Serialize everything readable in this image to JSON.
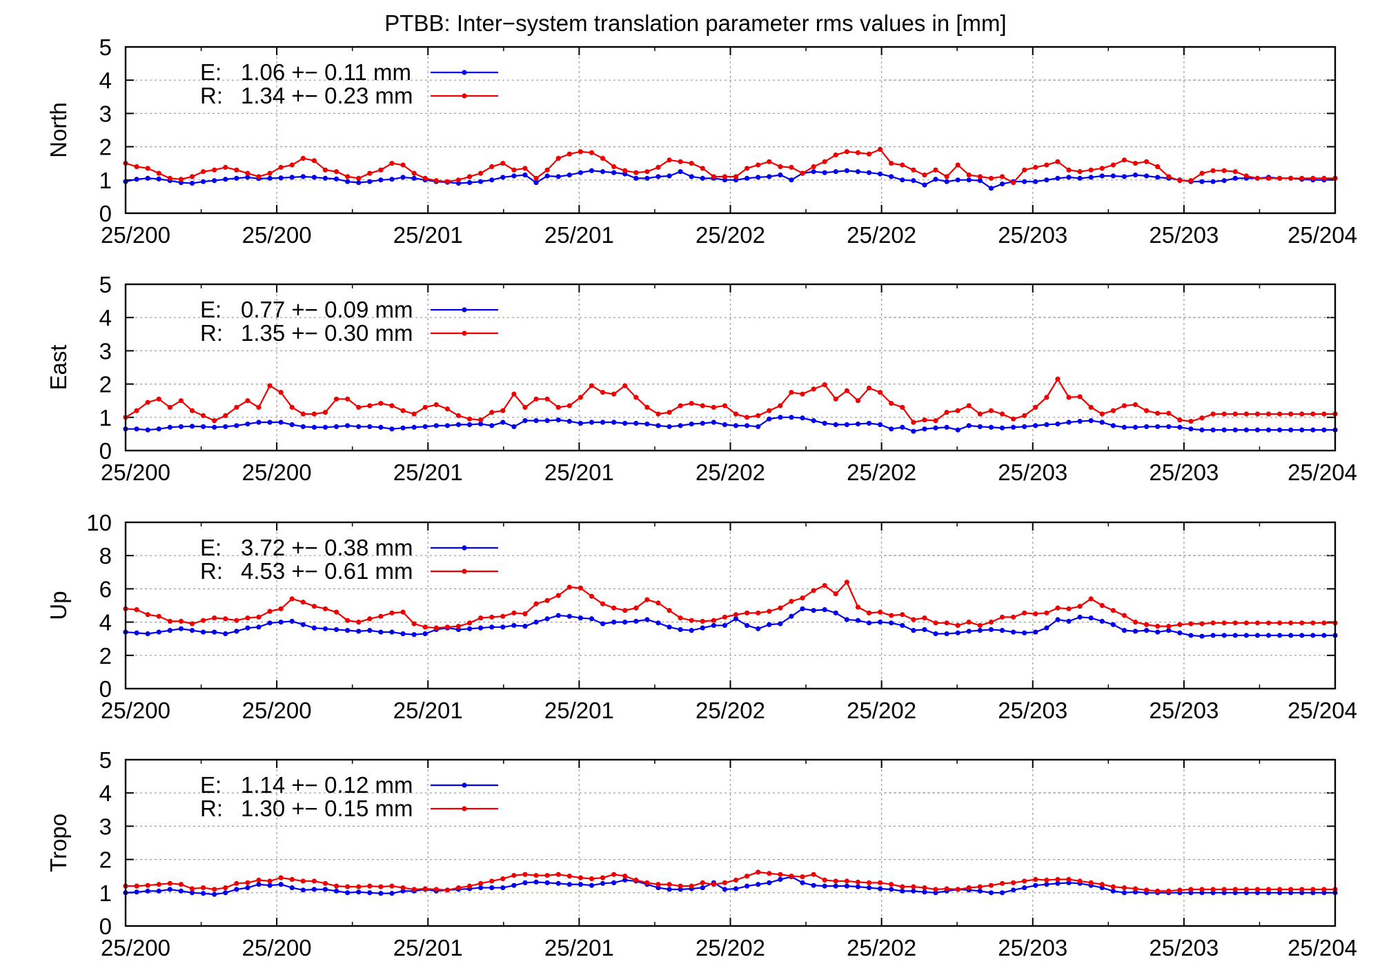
{
  "figure": {
    "title": "PTBB: Inter−system translation parameter rms values in [mm]"
  },
  "colors": {
    "E": "#0000ee",
    "R": "#ee0000",
    "grid": "#9a9a9a",
    "axis": "#000000"
  },
  "chart_data": [
    {
      "type": "line",
      "ylabel": "North",
      "ylim": [
        0,
        5
      ],
      "yticks": [
        0,
        1,
        2,
        3,
        4,
        5
      ],
      "xlim": [
        0,
        109
      ],
      "xtick_labels": [
        "25/200",
        "25/200",
        "25/201",
        "25/201",
        "25/202",
        "25/202",
        "25/203",
        "25/203",
        "25/204"
      ],
      "grid": true,
      "legend_position": "top-left",
      "legend": [
        {
          "name": "E:",
          "stat": "1.06 +− 0.11 mm"
        },
        {
          "name": "R:",
          "stat": "1.34 +− 0.23 mm"
        }
      ],
      "series": [
        {
          "name": "E",
          "color": "#0000ee",
          "values": [
            0.95,
            1.02,
            1.05,
            1.03,
            0.98,
            0.92,
            0.9,
            0.95,
            0.98,
            1.02,
            1.05,
            1.08,
            1.04,
            1.05,
            1.06,
            1.08,
            1.1,
            1.08,
            1.05,
            1.03,
            0.95,
            0.92,
            0.95,
            1.0,
            1.02,
            1.08,
            1.05,
            1.0,
            0.95,
            0.93,
            0.9,
            0.92,
            0.95,
            1.0,
            1.08,
            1.12,
            1.15,
            0.92,
            1.12,
            1.1,
            1.15,
            1.22,
            1.28,
            1.25,
            1.22,
            1.18,
            1.05,
            1.05,
            1.1,
            1.12,
            1.25,
            1.1,
            1.05,
            1.05,
            1.0,
            1.0,
            1.05,
            1.08,
            1.1,
            1.15,
            1.0,
            1.2,
            1.25,
            1.22,
            1.25,
            1.28,
            1.25,
            1.22,
            1.18,
            1.1,
            1.0,
            0.98,
            0.85,
            1.02,
            0.95,
            1.0,
            1.0,
            0.98,
            0.75,
            0.88,
            0.95,
            0.95,
            0.95,
            1.0,
            1.05,
            1.08,
            1.05,
            1.08,
            1.12,
            1.12,
            1.1,
            1.15,
            1.12,
            1.08,
            1.05,
            1.0,
            0.95,
            0.95,
            0.95,
            0.98,
            1.05,
            1.05,
            1.05,
            1.08,
            1.05,
            1.05,
            1.02,
            1.0,
            1.0,
            1.05
          ]
        },
        {
          "name": "R",
          "color": "#ee0000",
          "values": [
            1.5,
            1.4,
            1.35,
            1.2,
            1.05,
            1.02,
            1.1,
            1.25,
            1.3,
            1.38,
            1.3,
            1.2,
            1.1,
            1.2,
            1.38,
            1.45,
            1.65,
            1.58,
            1.3,
            1.25,
            1.1,
            1.05,
            1.2,
            1.3,
            1.5,
            1.45,
            1.2,
            1.05,
            0.98,
            0.95,
            1.0,
            1.1,
            1.2,
            1.4,
            1.5,
            1.3,
            1.35,
            1.05,
            1.3,
            1.65,
            1.78,
            1.85,
            1.82,
            1.65,
            1.4,
            1.28,
            1.22,
            1.25,
            1.38,
            1.6,
            1.55,
            1.5,
            1.35,
            1.1,
            1.1,
            1.1,
            1.35,
            1.45,
            1.55,
            1.4,
            1.38,
            1.2,
            1.4,
            1.55,
            1.75,
            1.85,
            1.82,
            1.78,
            1.92,
            1.5,
            1.45,
            1.3,
            1.15,
            1.3,
            1.1,
            1.45,
            1.15,
            1.1,
            1.05,
            1.1,
            0.92,
            1.3,
            1.38,
            1.45,
            1.55,
            1.3,
            1.25,
            1.3,
            1.35,
            1.45,
            1.6,
            1.5,
            1.55,
            1.4,
            1.1,
            0.98,
            0.98,
            1.2,
            1.28,
            1.28,
            1.25,
            1.12,
            1.05,
            1.05,
            1.05,
            1.05,
            1.05,
            1.05,
            1.05,
            1.05
          ]
        }
      ]
    },
    {
      "type": "line",
      "ylabel": "East",
      "ylim": [
        0,
        5
      ],
      "yticks": [
        0,
        1,
        2,
        3,
        4,
        5
      ],
      "xlim": [
        0,
        109
      ],
      "xtick_labels": [
        "25/200",
        "25/200",
        "25/201",
        "25/201",
        "25/202",
        "25/202",
        "25/203",
        "25/203",
        "25/204"
      ],
      "grid": true,
      "legend_position": "top-left",
      "legend": [
        {
          "name": "E:",
          "stat": "0.77 +− 0.09 mm"
        },
        {
          "name": "R:",
          "stat": "1.35 +− 0.30 mm"
        }
      ],
      "series": [
        {
          "name": "E",
          "color": "#0000ee",
          "values": [
            0.65,
            0.65,
            0.62,
            0.65,
            0.7,
            0.72,
            0.73,
            0.72,
            0.7,
            0.72,
            0.75,
            0.8,
            0.85,
            0.85,
            0.85,
            0.78,
            0.72,
            0.7,
            0.7,
            0.72,
            0.75,
            0.72,
            0.72,
            0.7,
            0.65,
            0.68,
            0.7,
            0.72,
            0.75,
            0.75,
            0.78,
            0.78,
            0.8,
            0.75,
            0.85,
            0.72,
            0.9,
            0.9,
            0.9,
            0.92,
            0.88,
            0.82,
            0.85,
            0.85,
            0.85,
            0.82,
            0.82,
            0.8,
            0.75,
            0.72,
            0.75,
            0.8,
            0.82,
            0.85,
            0.78,
            0.75,
            0.75,
            0.72,
            0.95,
            1.0,
            1.0,
            0.98,
            0.9,
            0.82,
            0.78,
            0.78,
            0.8,
            0.82,
            0.78,
            0.65,
            0.7,
            0.58,
            0.65,
            0.68,
            0.7,
            0.62,
            0.75,
            0.72,
            0.7,
            0.68,
            0.7,
            0.72,
            0.75,
            0.78,
            0.8,
            0.85,
            0.88,
            0.9,
            0.85,
            0.75,
            0.7,
            0.7,
            0.72,
            0.72,
            0.72,
            0.7,
            0.65,
            0.62,
            0.62,
            0.62,
            0.62,
            0.62,
            0.62,
            0.62,
            0.62,
            0.62,
            0.62,
            0.62,
            0.62,
            0.62
          ]
        },
        {
          "name": "R",
          "color": "#ee0000",
          "values": [
            1.0,
            1.2,
            1.45,
            1.55,
            1.3,
            1.5,
            1.2,
            1.05,
            0.9,
            1.05,
            1.3,
            1.5,
            1.3,
            1.95,
            1.75,
            1.3,
            1.1,
            1.1,
            1.15,
            1.55,
            1.55,
            1.3,
            1.35,
            1.42,
            1.35,
            1.2,
            1.1,
            1.3,
            1.38,
            1.25,
            1.05,
            0.95,
            0.92,
            1.15,
            1.2,
            1.7,
            1.3,
            1.55,
            1.55,
            1.3,
            1.35,
            1.6,
            1.95,
            1.75,
            1.7,
            1.95,
            1.6,
            1.3,
            1.1,
            1.15,
            1.35,
            1.42,
            1.35,
            1.3,
            1.35,
            1.1,
            1.0,
            1.05,
            1.2,
            1.35,
            1.75,
            1.7,
            1.85,
            1.98,
            1.55,
            1.8,
            1.5,
            1.88,
            1.75,
            1.42,
            1.3,
            0.85,
            0.92,
            0.9,
            1.15,
            1.2,
            1.35,
            1.1,
            1.2,
            1.1,
            0.95,
            1.05,
            1.3,
            1.6,
            2.15,
            1.6,
            1.62,
            1.3,
            1.1,
            1.2,
            1.35,
            1.38,
            1.2,
            1.12,
            1.12,
            0.92,
            0.88,
            0.98,
            1.1,
            1.1,
            1.1,
            1.1,
            1.1,
            1.1,
            1.1,
            1.1,
            1.1,
            1.1,
            1.1,
            1.1
          ]
        }
      ]
    },
    {
      "type": "line",
      "ylabel": "Up",
      "ylim": [
        0,
        10
      ],
      "yticks": [
        0,
        2,
        4,
        6,
        8,
        10
      ],
      "xlim": [
        0,
        109
      ],
      "xtick_labels": [
        "25/200",
        "25/200",
        "25/201",
        "25/201",
        "25/202",
        "25/202",
        "25/203",
        "25/203",
        "25/204"
      ],
      "grid": true,
      "legend_position": "top-left",
      "legend": [
        {
          "name": "E:",
          "stat": "3.72 +− 0.38 mm"
        },
        {
          "name": "R:",
          "stat": "4.53 +− 0.61 mm"
        }
      ],
      "series": [
        {
          "name": "E",
          "color": "#0000ee",
          "values": [
            3.4,
            3.35,
            3.3,
            3.4,
            3.5,
            3.6,
            3.5,
            3.4,
            3.4,
            3.3,
            3.45,
            3.65,
            3.7,
            3.95,
            4.0,
            4.05,
            3.85,
            3.65,
            3.6,
            3.55,
            3.5,
            3.45,
            3.5,
            3.4,
            3.4,
            3.3,
            3.25,
            3.3,
            3.55,
            3.65,
            3.55,
            3.6,
            3.65,
            3.7,
            3.7,
            3.8,
            3.75,
            4.0,
            4.2,
            4.4,
            4.35,
            4.25,
            4.2,
            3.9,
            4.0,
            4.0,
            4.05,
            4.15,
            3.95,
            3.7,
            3.55,
            3.5,
            3.65,
            3.8,
            3.8,
            4.2,
            3.8,
            3.6,
            3.85,
            3.9,
            4.35,
            4.8,
            4.7,
            4.75,
            4.55,
            4.15,
            4.1,
            3.95,
            4.0,
            3.95,
            3.8,
            3.5,
            3.55,
            3.3,
            3.3,
            3.35,
            3.45,
            3.5,
            3.55,
            3.5,
            3.4,
            3.35,
            3.4,
            3.65,
            4.15,
            4.05,
            4.3,
            4.25,
            4.05,
            3.85,
            3.5,
            3.45,
            3.5,
            3.4,
            3.5,
            3.35,
            3.2,
            3.15,
            3.2,
            3.2,
            3.2,
            3.2,
            3.2,
            3.2,
            3.2,
            3.2,
            3.2,
            3.2,
            3.2,
            3.2
          ]
        },
        {
          "name": "R",
          "color": "#ee0000",
          "values": [
            4.8,
            4.75,
            4.45,
            4.35,
            4.05,
            4.05,
            3.9,
            4.1,
            4.25,
            4.2,
            4.1,
            4.25,
            4.3,
            4.65,
            4.8,
            5.4,
            5.2,
            4.95,
            4.8,
            4.6,
            4.1,
            4.0,
            4.2,
            4.35,
            4.55,
            4.6,
            3.9,
            3.7,
            3.65,
            3.7,
            3.75,
            3.95,
            4.25,
            4.3,
            4.35,
            4.55,
            4.5,
            5.1,
            5.3,
            5.6,
            6.1,
            6.05,
            5.55,
            5.1,
            4.85,
            4.7,
            4.85,
            5.35,
            5.15,
            4.7,
            4.25,
            4.1,
            4.05,
            4.1,
            4.3,
            4.45,
            4.55,
            4.55,
            4.65,
            4.85,
            5.25,
            5.45,
            5.9,
            6.2,
            5.7,
            6.4,
            4.9,
            4.55,
            4.6,
            4.4,
            4.45,
            4.15,
            4.25,
            3.95,
            3.95,
            3.8,
            4.0,
            3.8,
            4.0,
            4.3,
            4.3,
            4.55,
            4.5,
            4.55,
            4.85,
            4.8,
            4.95,
            5.4,
            5.0,
            4.7,
            4.4,
            4.0,
            3.85,
            3.75,
            3.75,
            3.85,
            3.9,
            3.9,
            3.95,
            3.95,
            3.95,
            3.95,
            3.95,
            3.95,
            3.95,
            3.95,
            3.95,
            3.95,
            3.95,
            3.95
          ]
        }
      ]
    },
    {
      "type": "line",
      "ylabel": "Tropo",
      "ylim": [
        0,
        5
      ],
      "yticks": [
        0,
        1,
        2,
        3,
        4,
        5
      ],
      "xlim": [
        0,
        109
      ],
      "xtick_labels": [
        "25/200",
        "25/200",
        "25/201",
        "25/201",
        "25/202",
        "25/202",
        "25/203",
        "25/203",
        "25/204"
      ],
      "grid": true,
      "legend_position": "top-left",
      "legend": [
        {
          "name": "E:",
          "stat": "1.14 +− 0.12 mm"
        },
        {
          "name": "R:",
          "stat": "1.30 +− 0.15 mm"
        }
      ],
      "series": [
        {
          "name": "E",
          "color": "#0000ee",
          "values": [
            1.0,
            1.02,
            1.05,
            1.05,
            1.1,
            1.05,
            1.0,
            0.98,
            0.95,
            1.0,
            1.1,
            1.15,
            1.25,
            1.22,
            1.25,
            1.15,
            1.08,
            1.1,
            1.1,
            1.05,
            1.0,
            1.02,
            1.0,
            0.98,
            0.98,
            1.05,
            1.05,
            1.1,
            1.05,
            1.08,
            1.1,
            1.12,
            1.15,
            1.15,
            1.15,
            1.22,
            1.3,
            1.32,
            1.3,
            1.28,
            1.25,
            1.25,
            1.22,
            1.28,
            1.3,
            1.38,
            1.35,
            1.25,
            1.15,
            1.1,
            1.1,
            1.12,
            1.15,
            1.3,
            1.1,
            1.12,
            1.2,
            1.25,
            1.3,
            1.4,
            1.48,
            1.3,
            1.22,
            1.2,
            1.2,
            1.2,
            1.18,
            1.15,
            1.12,
            1.1,
            1.05,
            1.05,
            1.02,
            1.0,
            1.05,
            1.1,
            1.08,
            1.05,
            1.0,
            1.0,
            1.08,
            1.15,
            1.22,
            1.25,
            1.28,
            1.3,
            1.28,
            1.22,
            1.15,
            1.05,
            1.0,
            1.02,
            1.0,
            1.0,
            1.0,
            1.0,
            1.0,
            1.0,
            1.0,
            1.0,
            1.0,
            1.0,
            1.0,
            1.0,
            1.0,
            1.0,
            1.0,
            1.0,
            1.0,
            1.0
          ]
        },
        {
          "name": "R",
          "color": "#ee0000",
          "values": [
            1.2,
            1.2,
            1.22,
            1.25,
            1.28,
            1.25,
            1.12,
            1.15,
            1.1,
            1.15,
            1.28,
            1.3,
            1.38,
            1.35,
            1.45,
            1.4,
            1.35,
            1.35,
            1.28,
            1.2,
            1.18,
            1.18,
            1.2,
            1.18,
            1.2,
            1.15,
            1.1,
            1.12,
            1.1,
            1.08,
            1.15,
            1.2,
            1.28,
            1.35,
            1.42,
            1.52,
            1.55,
            1.52,
            1.52,
            1.55,
            1.5,
            1.45,
            1.42,
            1.45,
            1.55,
            1.5,
            1.38,
            1.3,
            1.25,
            1.25,
            1.2,
            1.2,
            1.3,
            1.25,
            1.3,
            1.38,
            1.5,
            1.62,
            1.58,
            1.55,
            1.5,
            1.48,
            1.55,
            1.38,
            1.35,
            1.35,
            1.32,
            1.3,
            1.3,
            1.25,
            1.18,
            1.18,
            1.15,
            1.1,
            1.12,
            1.1,
            1.15,
            1.18,
            1.22,
            1.28,
            1.3,
            1.35,
            1.4,
            1.38,
            1.4,
            1.4,
            1.35,
            1.3,
            1.25,
            1.18,
            1.15,
            1.12,
            1.08,
            1.05,
            1.05,
            1.08,
            1.1,
            1.1,
            1.1,
            1.1,
            1.1,
            1.1,
            1.1,
            1.1,
            1.1,
            1.1,
            1.1,
            1.1,
            1.1,
            1.1
          ]
        }
      ]
    }
  ]
}
